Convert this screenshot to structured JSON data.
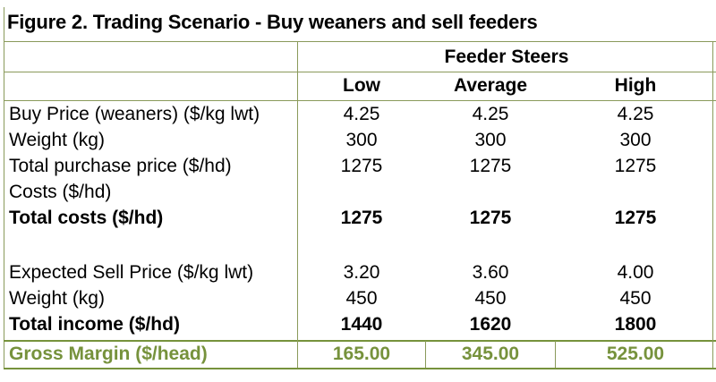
{
  "title": "Figure 2. Trading Scenario - Buy weaners and sell feeders",
  "group_header": "Feeder Steers",
  "columns": [
    "Low",
    "Average",
    "High"
  ],
  "rows": [
    {
      "label": "Buy Price (weaners) ($/kg lwt)",
      "values": [
        "4.25",
        "4.25",
        "4.25"
      ],
      "bold": false
    },
    {
      "label": "Weight (kg)",
      "values": [
        "300",
        "300",
        "300"
      ],
      "bold": false
    },
    {
      "label": "Total purchase price ($/hd)",
      "values": [
        "1275",
        "1275",
        "1275"
      ],
      "bold": false
    },
    {
      "label": "Costs ($/hd)",
      "values": [
        "",
        "",
        ""
      ],
      "bold": false
    },
    {
      "label": "Total costs ($/hd)",
      "values": [
        "1275",
        "1275",
        "1275"
      ],
      "bold": true
    },
    {
      "label": "Expected Sell Price ($/kg lwt)",
      "values": [
        "3.20",
        "3.60",
        "4.00"
      ],
      "bold": false
    },
    {
      "label": "Weight (kg)",
      "values": [
        "450",
        "450",
        "450"
      ],
      "bold": false
    },
    {
      "label": "Total income ($/hd)",
      "values": [
        "1440",
        "1620",
        "1800"
      ],
      "bold": true
    }
  ],
  "gross_margin": {
    "label": "Gross Margin ($/head)",
    "values": [
      "165.00",
      "345.00",
      "525.00"
    ]
  },
  "colors": {
    "border": "#8a9a5b",
    "gross_margin": "#76923c"
  }
}
